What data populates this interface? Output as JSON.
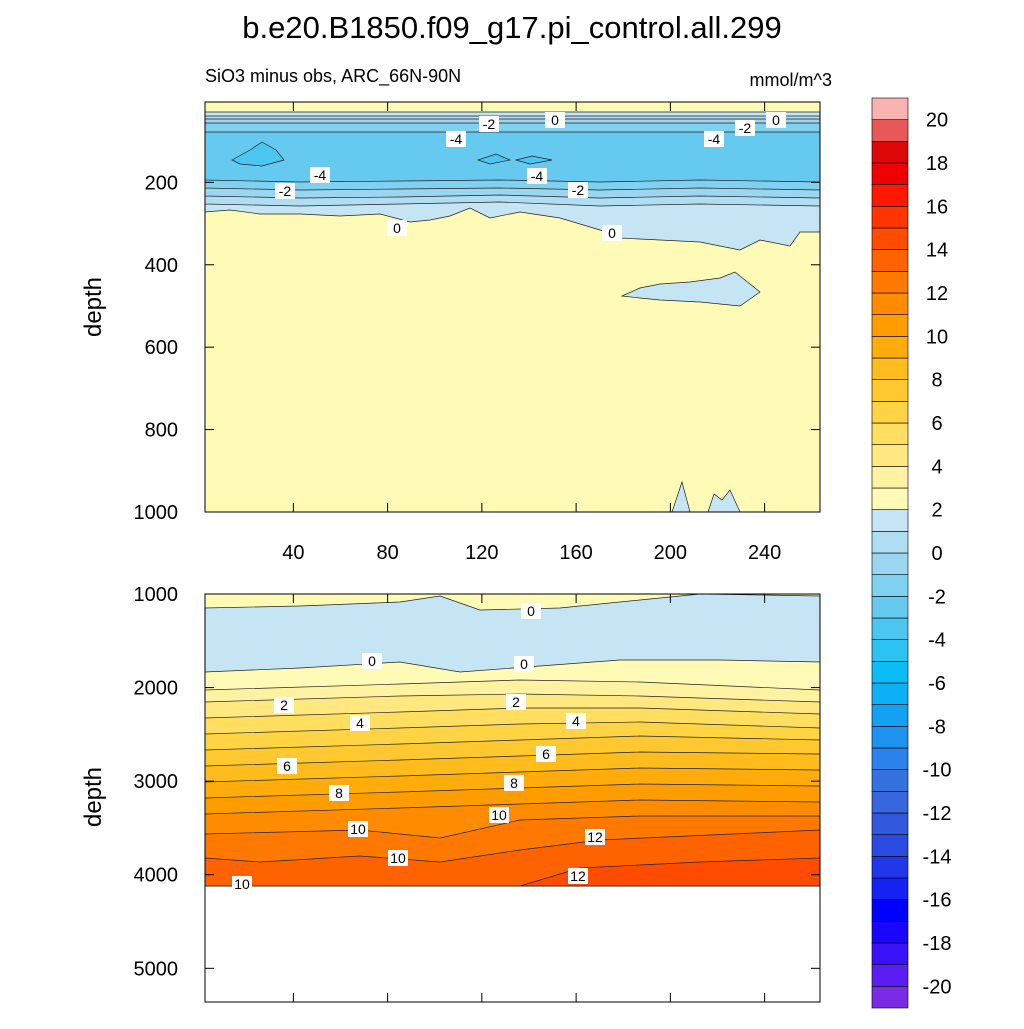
{
  "title": "b.e20.B1850.f09_g17.pi_control.all.299",
  "chart_data": [
    {
      "type": "contour",
      "subtitle": "SiO3 minus obs, ARC_66N-90N",
      "units": "mmol/m^3",
      "ylabel": "depth",
      "xlim": [
        2.5,
        263.5
      ],
      "xticks": [
        40,
        80,
        120,
        160,
        200,
        240
      ],
      "xtick_labels": true,
      "ylim": [
        5,
        1000
      ],
      "yticks": [
        200,
        400,
        600,
        800,
        1000
      ],
      "y_reversed": true,
      "contour_labels": [
        -2,
        0,
        -4,
        -4,
        -2,
        0,
        -4,
        -4,
        -2,
        -2,
        0,
        0
      ]
    },
    {
      "type": "contour",
      "ylabel": "depth",
      "xlim": [
        2.5,
        263.5
      ],
      "xticks": [
        40,
        80,
        120,
        160,
        200,
        240
      ],
      "xtick_labels": false,
      "ylim": [
        1000,
        5360
      ],
      "yticks": [
        1000,
        2000,
        3000,
        4000,
        5000
      ],
      "y_reversed": true,
      "contour_labels": [
        0,
        0,
        0,
        2,
        2,
        4,
        4,
        6,
        6,
        8,
        8,
        10,
        10,
        10,
        12,
        10,
        12
      ]
    }
  ],
  "colorbar": {
    "lim": [
      -21,
      21
    ],
    "ticks": [
      20,
      18,
      16,
      14,
      12,
      10,
      8,
      6,
      4,
      2,
      0,
      -2,
      -4,
      -6,
      -8,
      -10,
      -12,
      -14,
      -16,
      -18,
      -20
    ],
    "colors": [
      "#7b2be8",
      "#5a1ef2",
      "#3a12f8",
      "#1a06ff",
      "#0000ff",
      "#1422f4",
      "#2038ea",
      "#2a4ae2",
      "#3258de",
      "#3866dc",
      "#3472e0",
      "#2a82ea",
      "#1e92f0",
      "#12a2f4",
      "#0cb0f6",
      "#0cbcf6",
      "#2cc2f2",
      "#4ac6f0",
      "#66caf0",
      "#80d0f0",
      "#9ad6f0",
      "#b0ddf2",
      "#c6e5f4",
      "#fffab6",
      "#fff2a0",
      "#ffe880",
      "#ffde60",
      "#ffd444",
      "#ffc830",
      "#ffbc1c",
      "#ffac0c",
      "#ff9c00",
      "#ff8c00",
      "#ff7800",
      "#ff6200",
      "#ff4c00",
      "#ff3400",
      "#ff1800",
      "#f00000",
      "#dc0808",
      "#e85858",
      "#f7b2b2"
    ]
  }
}
